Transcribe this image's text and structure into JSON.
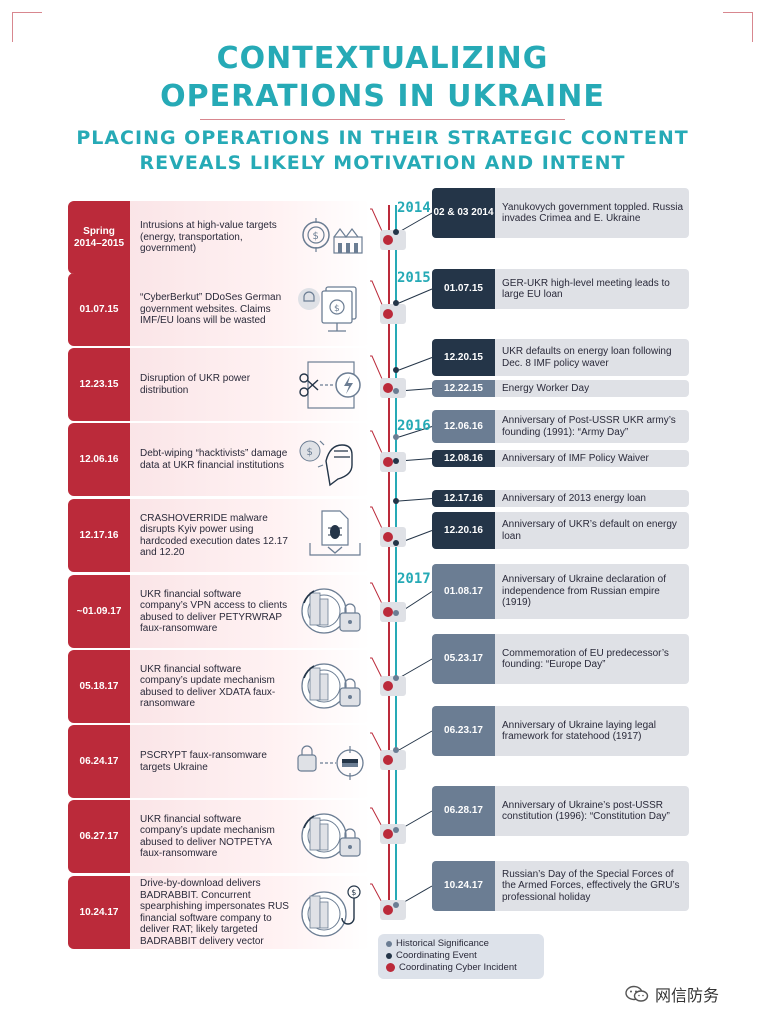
{
  "title": {
    "line1": "CONTEXTUALIZING",
    "line2": "OPERATIONS IN UKRAINE",
    "subtitle1": "PLACING OPERATIONS IN THEIR STRATEGIC CONTENT",
    "subtitle2": "REVEALS LIKELY MOTIVATION AND INTENT"
  },
  "years": [
    "2014",
    "2015",
    "2016",
    "2017"
  ],
  "cyber_incidents": [
    {
      "date": "Spring 2014–2015",
      "text": "Intrusions at high-value targets (energy, transportation, government)",
      "icon": "target-money-factory-icon"
    },
    {
      "date": "01.07.15",
      "text": "“CyberBerkut” DDoSes German government websites. Claims IMF/EU loans will be wasted",
      "icon": "skull-monitor-money-icon"
    },
    {
      "date": "12.23.15",
      "text": "Disruption of UKR power distribution",
      "icon": "cut-power-icon"
    },
    {
      "date": "12.06.16",
      "text": "Debt-wiping “hacktivists” damage data at UKR financial institutions",
      "icon": "fist-money-icon"
    },
    {
      "date": "12.17.16",
      "text": "CRASHOVERRIDE malware disrupts Kyiv power using hardcoded execution dates 12.17 and 12.20",
      "icon": "bug-document-icon"
    },
    {
      "date": "~01.09.17",
      "text": "UKR financial software company’s VPN access to clients abused to deliver PETYRWRAP faux-ransomware",
      "icon": "globe-lock-icon"
    },
    {
      "date": "05.18.17",
      "text": "UKR financial software company’s update mechanism abused to deliver XDATA faux-ransomware",
      "icon": "globe-lock-icon"
    },
    {
      "date": "06.24.17",
      "text": "PSCRYPT faux-ransomware targets Ukraine",
      "icon": "lock-target-flag-icon"
    },
    {
      "date": "06.27.17",
      "text": "UKR financial software company’s update mechanism abused to deliver NOTPETYA faux-ransomware",
      "icon": "globe-lock-icon"
    },
    {
      "date": "10.24.17",
      "text": "Drive-by-download delivers BADRABBIT. Concurrent spearphishing impersonates RUS financial software company to deliver RAT; likely targeted BADRABBIT delivery vector",
      "icon": "globe-hook-icon"
    }
  ],
  "events": [
    {
      "date": "02 & 03 2014",
      "text": "Yanukovych government toppled. Russia invades Crimea and E. Ukraine",
      "kind": "coordinating"
    },
    {
      "date": "01.07.15",
      "text": "GER-UKR high-level meeting leads to large EU loan",
      "kind": "coordinating"
    },
    {
      "date": "12.20.15",
      "text": "UKR defaults on energy loan following Dec. 8 IMF policy waver",
      "kind": "coordinating"
    },
    {
      "date": "12.22.15",
      "text": "Energy Worker Day",
      "kind": "historical"
    },
    {
      "date": "12.06.16",
      "text": "Anniversary of Post-USSR UKR army’s founding (1991): “Army Day”",
      "kind": "historical"
    },
    {
      "date": "12.08.16",
      "text": "Anniversary of IMF Policy Waiver",
      "kind": "coordinating"
    },
    {
      "date": "12.17.16",
      "text": "Anniversary of 2013 energy loan",
      "kind": "coordinating"
    },
    {
      "date": "12.20.16",
      "text": "Anniversary of UKR’s default on energy loan",
      "kind": "coordinating"
    },
    {
      "date": "01.08.17",
      "text": "Anniversary of Ukraine declaration of independence from Russian empire (1919)",
      "kind": "historical"
    },
    {
      "date": "05.23.17",
      "text": "Commemoration of EU predecessor’s founding: “Europe Day”",
      "kind": "historical"
    },
    {
      "date": "06.23.17",
      "text": "Anniversary of Ukraine laying legal framework for statehood (1917)",
      "kind": "historical"
    },
    {
      "date": "06.28.17",
      "text": "Anniversary of Ukraine’s post-USSR constitution (1996): “Constitution Day”",
      "kind": "historical"
    },
    {
      "date": "10.24.17",
      "text": "Russian’s Day of the Special Forces of the Armed Forces, effectively the GRU’s professional holiday",
      "kind": "historical"
    }
  ],
  "legend": {
    "historical": "Historical Significance",
    "coordinating": "Coordinating Event",
    "cyber": "Coordinating Cyber Incident"
  },
  "colors": {
    "teal": "#26aab6",
    "red": "#bb2a3a",
    "navy": "#243548",
    "slate": "#6b7d93"
  },
  "watermark": "网信防务"
}
